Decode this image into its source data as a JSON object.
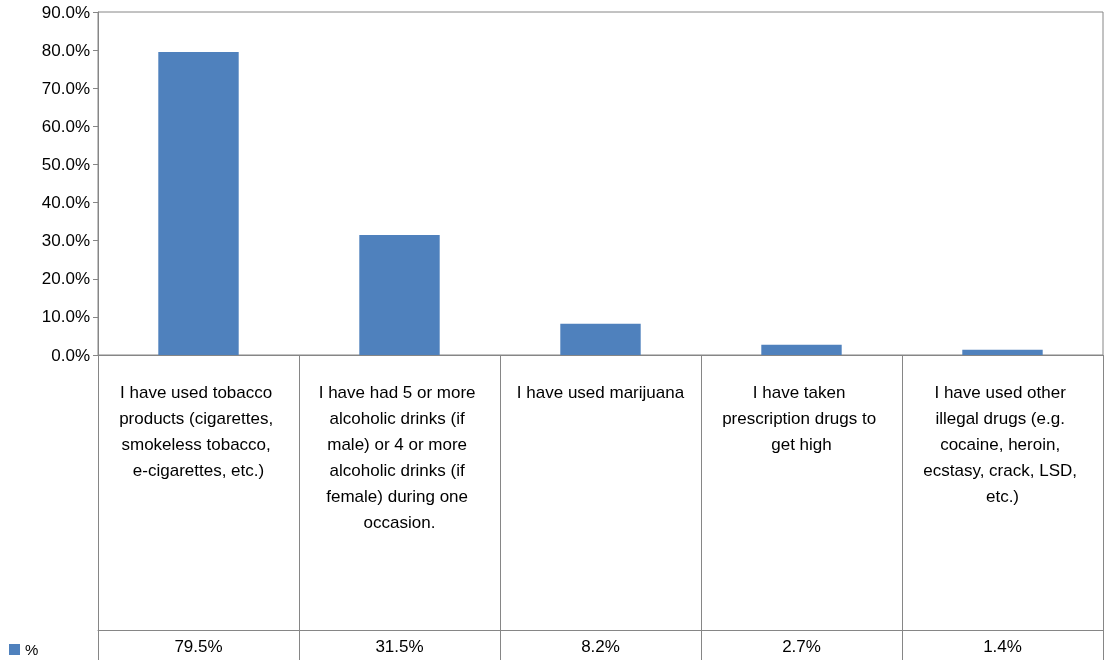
{
  "chart_data": {
    "type": "bar",
    "categories": [
      "I have used tobacco products (cigarettes, smokeless tobacco, e-cigarettes, etc.)",
      "I have had 5 or more alcoholic drinks (if male) or 4 or more alcoholic drinks (if female) during one occasion.",
      "I have used marijuana",
      "I have taken prescription drugs to get high",
      "I have used other illegal drugs (e.g. cocaine, heroin, ecstasy, crack, LSD, etc.)"
    ],
    "series": [
      {
        "name": "%",
        "color": "#4f81bd",
        "values": [
          79.5,
          31.5,
          8.2,
          2.7,
          1.4
        ],
        "value_labels": [
          "79.5%",
          "31.5%",
          "8.2%",
          "2.7%",
          "1.4%"
        ]
      }
    ],
    "ylim": [
      0,
      90
    ],
    "yticks": [
      {
        "value": 0,
        "label": "0.0%"
      },
      {
        "value": 10,
        "label": "10.0%"
      },
      {
        "value": 20,
        "label": "20.0%"
      },
      {
        "value": 30,
        "label": "30.0%"
      },
      {
        "value": 40,
        "label": "40.0%"
      },
      {
        "value": 50,
        "label": "50.0%"
      },
      {
        "value": 60,
        "label": "60.0%"
      },
      {
        "value": 70,
        "label": "70.0%"
      },
      {
        "value": 80,
        "label": "80.0%"
      },
      {
        "value": 90,
        "label": "90.0%"
      }
    ],
    "grid": false,
    "legend": "bottom left"
  }
}
